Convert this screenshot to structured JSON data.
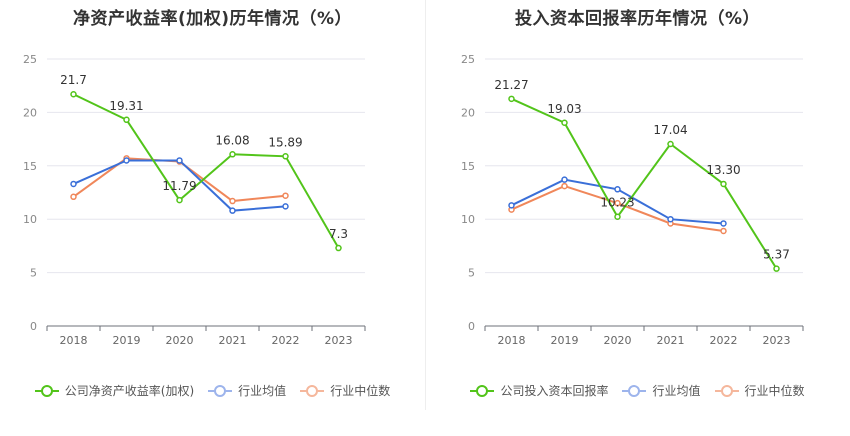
{
  "chart_data": [
    {
      "type": "line",
      "title": "净资产收益率(加权)历年情况（%）",
      "categories": [
        "2018",
        "2019",
        "2020",
        "2021",
        "2022",
        "2023"
      ],
      "ylim": [
        0,
        25
      ],
      "yticks": [
        0,
        5,
        10,
        15,
        20,
        25
      ],
      "grid": true,
      "legend_position": "bottom",
      "series": [
        {
          "name": "公司净资产收益率(加权)",
          "color": "#52c41a",
          "values": [
            21.7,
            19.31,
            11.79,
            16.08,
            15.89,
            7.3
          ],
          "labels": [
            "21.7",
            "19.31",
            "11.79",
            "16.08",
            "15.89",
            "7.3"
          ]
        },
        {
          "name": "行业均值",
          "color": "#3a6fd8",
          "values": [
            13.3,
            15.5,
            15.5,
            10.8,
            11.2,
            null
          ]
        },
        {
          "name": "行业中位数",
          "color": "#f0875a",
          "values": [
            12.1,
            15.7,
            15.4,
            11.7,
            12.2,
            null
          ]
        }
      ]
    },
    {
      "type": "line",
      "title": "投入资本回报率历年情况（%）",
      "categories": [
        "2018",
        "2019",
        "2020",
        "2021",
        "2022",
        "2023"
      ],
      "ylim": [
        0,
        25
      ],
      "yticks": [
        0,
        5,
        10,
        15,
        20,
        25
      ],
      "grid": true,
      "legend_position": "bottom",
      "series": [
        {
          "name": "公司投入资本回报率",
          "color": "#52c41a",
          "values": [
            21.27,
            19.03,
            10.23,
            17.04,
            13.3,
            5.37
          ],
          "labels": [
            "21.27",
            "19.03",
            "10.23",
            "17.04",
            "13.30",
            "5.37"
          ]
        },
        {
          "name": "行业均值",
          "color": "#3a6fd8",
          "values": [
            11.3,
            13.7,
            12.8,
            10.0,
            9.6,
            null
          ]
        },
        {
          "name": "行业中位数",
          "color": "#f0875a",
          "values": [
            10.9,
            13.1,
            11.5,
            9.6,
            8.9,
            null
          ]
        }
      ]
    }
  ]
}
